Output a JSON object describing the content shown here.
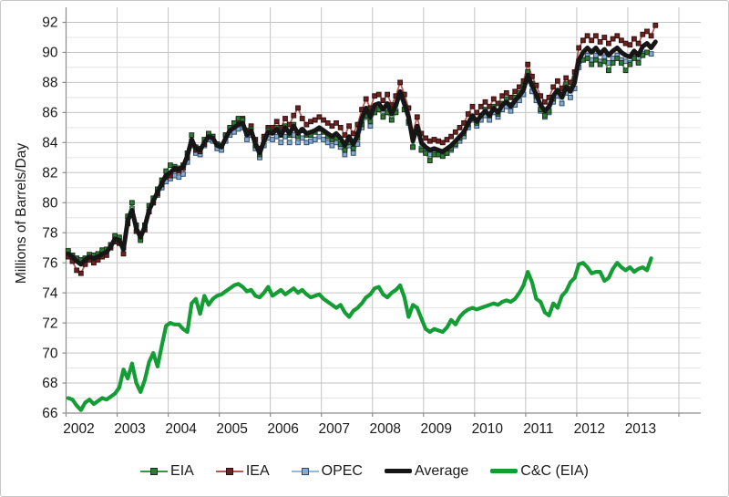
{
  "chart_data": {
    "type": "line",
    "title": "",
    "xlabel": "",
    "ylabel": "Millions of Barrels/Day",
    "x_frequency": "monthly",
    "x_start_label": "2002",
    "x_tick_labels": [
      "2002",
      "2003",
      "2004",
      "2005",
      "2006",
      "2007",
      "2008",
      "2009",
      "2010",
      "2011",
      "2012",
      "2013"
    ],
    "y_ticks": [
      66,
      68,
      70,
      72,
      74,
      76,
      78,
      80,
      82,
      84,
      86,
      88,
      90,
      92
    ],
    "ylim": [
      66,
      93
    ],
    "grid": {
      "major_horizontal": true,
      "minor_horizontal": true,
      "vertical_years": true
    },
    "legend_position": "bottom",
    "colors": {
      "grid_major": "#c3c3c3",
      "grid_minor": "#e4e4e4",
      "axis": "#8c8c8c",
      "text": "#1a1a1a"
    },
    "series": [
      {
        "name": "EIA",
        "color": "#3a9546",
        "line_width": 1.7,
        "marker": true,
        "marker_fill": "#2b7d35",
        "marker_stroke": "#1c2e1a",
        "z": 2,
        "values": [
          76.8,
          76.5,
          76.3,
          76.2,
          76.3,
          76.55,
          76.5,
          76.6,
          76.85,
          76.9,
          77.2,
          77.8,
          77.7,
          77.0,
          79.1,
          80.0,
          78.5,
          77.5,
          78.5,
          79.8,
          80.3,
          80.9,
          81.5,
          82.1,
          82.5,
          82.4,
          82.3,
          82.5,
          83.3,
          84.5,
          83.7,
          83.6,
          84.2,
          84.6,
          84.4,
          83.9,
          83.8,
          84.5,
          85.0,
          85.3,
          85.6,
          85.5,
          84.6,
          84.9,
          83.8,
          83.2,
          84.2,
          84.8,
          84.7,
          85.0,
          84.5,
          85.1,
          84.5,
          85.2,
          84.4,
          84.8,
          84.5,
          84.5,
          84.7,
          84.9,
          84.7,
          84.4,
          84.2,
          84.3,
          83.9,
          83.5,
          84.0,
          83.6,
          84.3,
          85.2,
          85.8,
          85.4,
          86.0,
          86.2,
          85.7,
          86.0,
          85.5,
          86.0,
          87.1,
          86.2,
          85.4,
          83.7,
          84.9,
          83.5,
          83.3,
          82.8,
          83.2,
          83.2,
          83.1,
          83.3,
          83.6,
          83.9,
          84.3,
          84.6,
          85.2,
          85.6,
          85.3,
          85.8,
          86.2,
          85.8,
          86.4,
          85.9,
          86.6,
          86.9,
          86.5,
          87.0,
          87.3,
          87.8,
          88.7,
          87.9,
          87.1,
          86.2,
          85.8,
          86.1,
          86.9,
          87.4,
          87.2,
          87.9,
          87.6,
          88.3,
          89.4,
          89.5,
          89.6,
          89.2,
          89.5,
          89.2,
          89.4,
          88.8,
          89.3,
          89.6,
          89.3,
          88.8,
          89.2,
          89.6,
          89.3,
          89.8,
          90.0
        ]
      },
      {
        "name": "IEA",
        "color": "#b55752",
        "line_width": 1.7,
        "marker": true,
        "marker_fill": "#6b2220",
        "marker_stroke": "#33100f",
        "z": 1,
        "values": [
          76.4,
          76.1,
          75.5,
          75.3,
          75.9,
          76.2,
          76.0,
          76.2,
          76.4,
          76.5,
          77.0,
          77.4,
          77.3,
          76.6,
          78.6,
          79.3,
          78.1,
          77.6,
          78.2,
          79.4,
          80.0,
          80.6,
          81.2,
          81.7,
          81.8,
          82.2,
          82.1,
          82.3,
          83.0,
          84.1,
          83.5,
          83.4,
          83.9,
          84.5,
          84.4,
          83.9,
          83.8,
          84.5,
          85.0,
          85.3,
          85.5,
          85.6,
          84.8,
          85.1,
          84.2,
          83.6,
          84.4,
          85.0,
          85.0,
          85.4,
          85.0,
          85.6,
          85.2,
          85.8,
          86.3,
          85.6,
          85.2,
          85.4,
          85.5,
          85.7,
          85.5,
          85.3,
          85.1,
          85.3,
          85.0,
          84.5,
          85.1,
          84.6,
          85.2,
          86.2,
          86.9,
          86.3,
          87.1,
          87.2,
          86.8,
          87.2,
          86.5,
          87.1,
          88.0,
          87.2,
          86.3,
          84.7,
          85.7,
          84.6,
          84.3,
          84.1,
          84.2,
          84.1,
          84.0,
          84.2,
          84.4,
          84.7,
          85.0,
          85.3,
          85.9,
          86.4,
          86.0,
          86.4,
          86.7,
          86.4,
          86.9,
          86.6,
          87.1,
          87.3,
          87.0,
          87.4,
          87.7,
          88.1,
          89.2,
          88.4,
          87.8,
          87.1,
          86.7,
          87.0,
          87.7,
          88.1,
          87.6,
          88.3,
          88.0,
          88.7,
          90.3,
          90.8,
          91.1,
          90.8,
          91.1,
          90.7,
          91.0,
          90.6,
          90.9,
          91.1,
          90.8,
          90.6,
          90.5,
          90.9,
          90.6,
          91.2,
          91.4,
          91.1,
          91.8
        ]
      },
      {
        "name": "OPEC",
        "color": "#9ab7d8",
        "line_width": 1.7,
        "marker": true,
        "marker_fill": "#87abd0",
        "marker_stroke": "#2f4e6e",
        "z": 0,
        "values": [
          76.7,
          76.5,
          76.3,
          76.1,
          76.3,
          76.5,
          76.4,
          76.5,
          76.7,
          76.8,
          77.2,
          77.7,
          77.6,
          77.1,
          78.9,
          79.6,
          78.5,
          77.8,
          78.5,
          79.4,
          80.0,
          80.5,
          81.0,
          81.4,
          81.6,
          81.8,
          81.7,
          81.9,
          82.7,
          83.8,
          83.3,
          83.2,
          83.8,
          84.2,
          84.1,
          83.6,
          83.5,
          84.1,
          84.5,
          84.7,
          84.9,
          85.0,
          84.2,
          84.5,
          83.6,
          83.0,
          83.8,
          84.3,
          84.2,
          84.4,
          84.0,
          84.4,
          84.0,
          84.5,
          84.0,
          84.3,
          84.0,
          84.1,
          84.2,
          84.4,
          84.2,
          84.0,
          83.8,
          84.0,
          83.7,
          83.2,
          83.8,
          83.3,
          83.9,
          85.0,
          85.7,
          85.1,
          86.1,
          86.2,
          85.8,
          86.2,
          85.5,
          86.1,
          87.0,
          86.2,
          85.3,
          83.7,
          84.7,
          83.6,
          83.4,
          83.2,
          83.3,
          83.2,
          83.1,
          83.3,
          83.5,
          83.8,
          84.1,
          84.4,
          85.0,
          85.5,
          85.1,
          85.5,
          85.8,
          85.5,
          86.0,
          85.7,
          86.2,
          86.4,
          86.1,
          86.5,
          86.8,
          87.2,
          88.1,
          87.4,
          86.8,
          86.1,
          85.7,
          86.0,
          86.7,
          87.1,
          86.6,
          87.3,
          87.0,
          87.6,
          89.0,
          89.5,
          89.8,
          89.5,
          89.8,
          89.4,
          89.7,
          89.3,
          89.6,
          89.8,
          89.5,
          89.4,
          89.3,
          89.7,
          89.4,
          89.9,
          90.0,
          89.9
        ]
      },
      {
        "name": "Average",
        "color": "#161616",
        "line_width": 5,
        "marker": false,
        "z": 3,
        "values": [
          76.6,
          76.4,
          76.1,
          75.9,
          76.2,
          76.4,
          76.3,
          76.4,
          76.6,
          76.7,
          77.1,
          77.6,
          77.5,
          76.9,
          78.8,
          79.5,
          78.3,
          77.7,
          78.4,
          79.5,
          80.1,
          80.7,
          81.3,
          81.8,
          82.0,
          82.3,
          82.2,
          82.4,
          83.1,
          84.2,
          83.6,
          83.5,
          84.0,
          84.4,
          84.3,
          83.8,
          83.7,
          84.3,
          84.8,
          85.0,
          85.2,
          85.3,
          84.5,
          84.8,
          83.9,
          83.3,
          84.1,
          84.7,
          84.6,
          84.9,
          84.5,
          85.0,
          84.6,
          85.1,
          84.6,
          84.9,
          84.6,
          84.7,
          84.8,
          85.0,
          84.8,
          84.6,
          84.4,
          84.6,
          84.3,
          83.8,
          84.4,
          83.9,
          84.5,
          85.6,
          86.3,
          85.7,
          86.5,
          86.6,
          86.2,
          86.6,
          85.9,
          86.5,
          87.4,
          86.6,
          85.7,
          84.1,
          85.1,
          84.0,
          83.7,
          83.5,
          83.6,
          83.5,
          83.4,
          83.6,
          83.8,
          84.1,
          84.4,
          84.7,
          85.3,
          85.8,
          85.4,
          85.8,
          86.1,
          85.8,
          86.3,
          86.0,
          86.5,
          86.7,
          86.4,
          86.8,
          87.1,
          87.5,
          88.5,
          87.8,
          87.2,
          86.5,
          86.1,
          86.4,
          87.1,
          87.5,
          87.0,
          87.7,
          87.4,
          88.0,
          89.5,
          90.0,
          90.3,
          90.0,
          90.3,
          89.9,
          90.2,
          89.8,
          90.1,
          90.3,
          90.0,
          89.8,
          89.7,
          90.1,
          89.8,
          90.4,
          90.6,
          90.3,
          90.7
        ]
      },
      {
        "name": "C&C (EIA)",
        "color": "#149c35",
        "line_width": 4.2,
        "marker": false,
        "z": 4,
        "values": [
          67.0,
          66.9,
          66.5,
          66.2,
          66.7,
          66.9,
          66.6,
          66.8,
          67.0,
          66.9,
          67.1,
          67.3,
          67.7,
          68.9,
          68.3,
          69.3,
          68.0,
          67.4,
          68.2,
          69.4,
          70.0,
          69.1,
          70.5,
          71.8,
          72.0,
          71.9,
          71.9,
          71.6,
          71.4,
          73.3,
          73.6,
          72.6,
          73.8,
          73.2,
          73.6,
          73.8,
          73.9,
          74.1,
          74.3,
          74.5,
          74.6,
          74.4,
          74.1,
          74.2,
          73.8,
          73.7,
          74.0,
          74.4,
          73.8,
          74.0,
          74.2,
          73.9,
          74.1,
          74.3,
          74.0,
          74.2,
          73.9,
          73.7,
          73.8,
          73.9,
          73.6,
          73.4,
          73.2,
          73.0,
          73.2,
          72.7,
          72.4,
          72.8,
          73.0,
          73.3,
          73.7,
          73.9,
          74.3,
          74.4,
          73.9,
          73.7,
          74.0,
          74.2,
          74.5,
          73.7,
          72.4,
          73.2,
          73.0,
          72.3,
          71.6,
          71.4,
          71.6,
          71.5,
          71.4,
          71.7,
          72.2,
          71.9,
          72.4,
          72.7,
          72.9,
          73.0,
          72.9,
          73.0,
          73.1,
          73.2,
          73.3,
          73.2,
          73.4,
          73.5,
          73.4,
          73.6,
          74.0,
          74.5,
          75.4,
          74.7,
          73.6,
          73.4,
          72.7,
          72.5,
          73.3,
          73.0,
          73.8,
          74.1,
          74.7,
          75.0,
          75.9,
          76.0,
          75.7,
          75.3,
          75.4,
          75.4,
          74.8,
          75.0,
          75.6,
          76.0,
          75.7,
          75.5,
          75.7,
          75.4,
          75.6,
          75.7,
          75.5,
          76.3
        ]
      }
    ]
  },
  "legend": {
    "items": [
      {
        "label": "EIA"
      },
      {
        "label": "IEA"
      },
      {
        "label": "OPEC"
      },
      {
        "label": "Average"
      },
      {
        "label": "C&C (EIA)"
      }
    ]
  }
}
